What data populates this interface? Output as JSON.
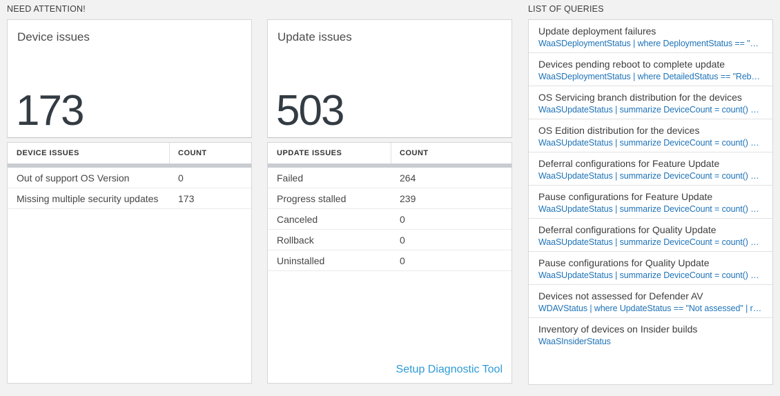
{
  "colors": {
    "link_blue": "#2e9bd6",
    "query_code_blue": "#1e73b8",
    "metric_dark": "#333b43",
    "thick_bar_gray": "#c9ccd1",
    "page_background": "#f2f2f2"
  },
  "need_attention": {
    "header": "NEED ATTENTION!",
    "device_tile": {
      "title": "Device issues",
      "value": "173"
    },
    "device_table": {
      "col_issue": "DEVICE ISSUES",
      "col_count": "COUNT",
      "rows": [
        {
          "label": "Out of support OS Version",
          "count": "0"
        },
        {
          "label": "Missing multiple security updates",
          "count": "173"
        }
      ]
    },
    "update_tile": {
      "title": "Update issues",
      "value": "503"
    },
    "update_table": {
      "col_issue": "UPDATE ISSUES",
      "col_count": "COUNT",
      "rows": [
        {
          "label": "Failed",
          "count": "264"
        },
        {
          "label": "Progress stalled",
          "count": "239"
        },
        {
          "label": "Canceled",
          "count": "0"
        },
        {
          "label": "Rollback",
          "count": "0"
        },
        {
          "label": "Uninstalled",
          "count": "0"
        }
      ]
    },
    "setup_link": "Setup Diagnostic Tool"
  },
  "queries": {
    "header": "LIST OF QUERIES",
    "items": [
      {
        "title": "Update deployment failures",
        "query": "WaaSDeploymentStatus | where DeploymentStatus == \"Failed\" |..."
      },
      {
        "title": "Devices pending reboot to complete update",
        "query": "WaaSDeploymentStatus | where DetailedStatus == \"Reboot pend..."
      },
      {
        "title": "OS Servicing branch distribution for the devices",
        "query": "WaaSUpdateStatus | summarize DeviceCount = count() by OSSer..."
      },
      {
        "title": "OS Edition distribution for the devices",
        "query": "WaaSUpdateStatus | summarize DeviceCount = count() by OSEdit..."
      },
      {
        "title": "Deferral configurations for Feature Update",
        "query": "WaaSUpdateStatus | summarize DeviceCount = count() by Featur..."
      },
      {
        "title": "Pause configurations for Feature Update",
        "query": "WaaSUpdateStatus | summarize DeviceCount = count() by Featur..."
      },
      {
        "title": "Deferral configurations for Quality Update",
        "query": "WaaSUpdateStatus | summarize DeviceCount = count() by Qualit..."
      },
      {
        "title": "Pause configurations for Quality Update",
        "query": "WaaSUpdateStatus | summarize DeviceCount = count() by Qualit..."
      },
      {
        "title": "Devices not assessed for Defender AV",
        "query": "WDAVStatus | where UpdateStatus == \"Not assessed\" | render ta..."
      },
      {
        "title": "Inventory of devices on Insider builds",
        "query": "WaaSInsiderStatus"
      }
    ]
  }
}
